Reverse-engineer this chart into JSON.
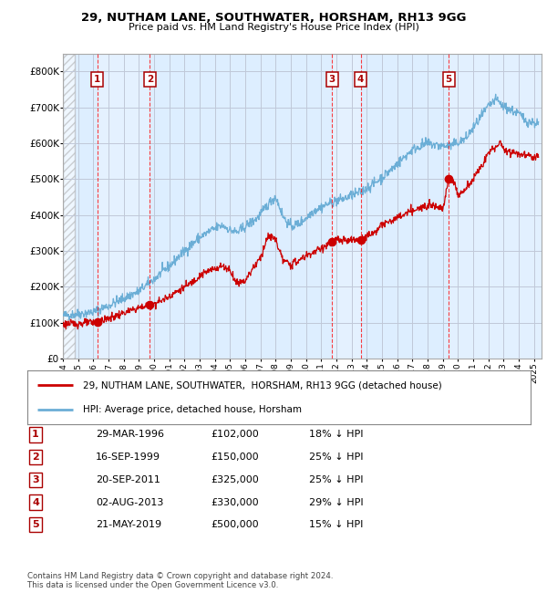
{
  "title": "29, NUTHAM LANE, SOUTHWATER, HORSHAM, RH13 9GG",
  "subtitle": "Price paid vs. HM Land Registry's House Price Index (HPI)",
  "footer1": "Contains HM Land Registry data © Crown copyright and database right 2024.",
  "footer2": "This data is licensed under the Open Government Licence v3.0.",
  "legend_label_red": "29, NUTHAM LANE, SOUTHWATER,  HORSHAM, RH13 9GG (detached house)",
  "legend_label_blue": "HPI: Average price, detached house, Horsham",
  "sale_dates": [
    "1996-03-29",
    "1999-09-16",
    "2011-09-20",
    "2013-08-02",
    "2019-05-21"
  ],
  "sale_prices": [
    102000,
    150000,
    325000,
    330000,
    500000
  ],
  "sale_labels": [
    "1",
    "2",
    "3",
    "4",
    "5"
  ],
  "sale_x_vals": [
    1996.25,
    1999.72,
    2011.72,
    2013.59,
    2019.39
  ],
  "sale_table": [
    [
      "1",
      "29-MAR-1996",
      "£102,000",
      "18% ↓ HPI"
    ],
    [
      "2",
      "16-SEP-1999",
      "£150,000",
      "25% ↓ HPI"
    ],
    [
      "3",
      "20-SEP-2011",
      "£325,000",
      "25% ↓ HPI"
    ],
    [
      "4",
      "02-AUG-2013",
      "£330,000",
      "29% ↓ HPI"
    ],
    [
      "5",
      "21-MAY-2019",
      "£500,000",
      "15% ↓ HPI"
    ]
  ],
  "hpi_color": "#6baed6",
  "price_color": "#cc0000",
  "background_plot": "#ddeeff",
  "grid_color": "#c0c8d8",
  "ylim": [
    0,
    850000
  ],
  "yticks": [
    0,
    100000,
    200000,
    300000,
    400000,
    500000,
    600000,
    700000,
    800000
  ],
  "xstart": 1994.0,
  "xend": 2025.5
}
